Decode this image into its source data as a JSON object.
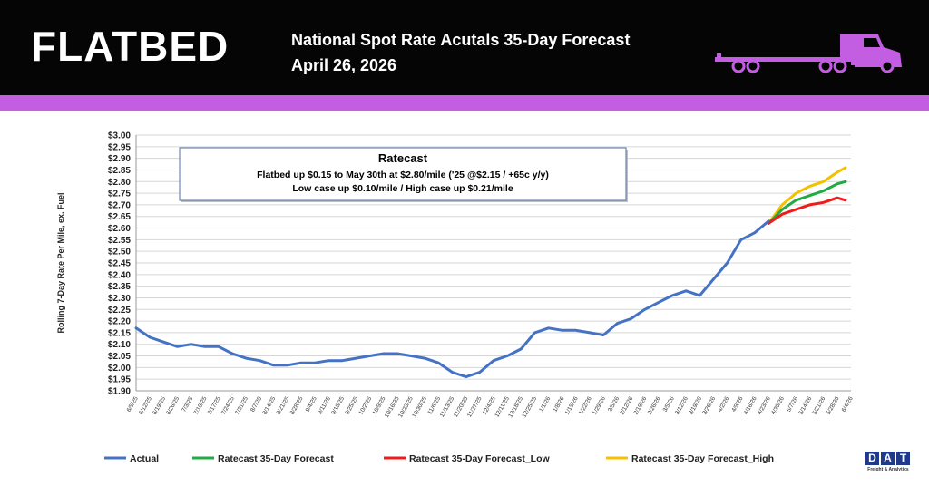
{
  "header": {
    "brand": "FLATBED",
    "title": "National Spot Rate Acutals 35-Day Forecast",
    "subtitle": "April 26, 2026",
    "truck_icon": "semi-truck-icon"
  },
  "colors": {
    "header_bg": "#050505",
    "band": "#c35de2",
    "actual": "#4472c4",
    "forecast": "#22aa44",
    "low": "#ee1c1c",
    "high": "#f5c000"
  },
  "logo": {
    "letters": [
      "D",
      "A",
      "T"
    ],
    "tagline": "Freight & Analytics"
  },
  "chart_data": {
    "type": "line",
    "ylabel": "Rolling 7-Day Rate Per Mile, ex. Fuel",
    "y_ticks": [
      "$1.90",
      "$1.95",
      "$2.00",
      "$2.05",
      "$2.10",
      "$2.15",
      "$2.20",
      "$2.25",
      "$2.30",
      "$2.35",
      "$2.40",
      "$2.45",
      "$2.50",
      "$2.55",
      "$2.60",
      "$2.65",
      "$2.70",
      "$2.75",
      "$2.80",
      "$2.85",
      "$2.90",
      "$2.95",
      "$3.00"
    ],
    "ylim": [
      1.9,
      3.0
    ],
    "x_ticks": [
      "6/5/25",
      "6/12/25",
      "6/19/25",
      "6/26/25",
      "7/3/25",
      "7/10/25",
      "7/17/25",
      "7/24/25",
      "7/31/25",
      "8/7/25",
      "8/14/25",
      "8/21/25",
      "8/28/25",
      "9/4/25",
      "9/11/25",
      "9/18/25",
      "9/25/25",
      "10/2/25",
      "10/9/25",
      "10/16/25",
      "10/23/25",
      "10/30/25",
      "11/6/25",
      "11/13/25",
      "11/20/25",
      "11/27/25",
      "12/4/25",
      "12/11/25",
      "12/18/25",
      "12/25/25",
      "1/1/26",
      "1/8/26",
      "1/15/26",
      "1/22/26",
      "1/29/26",
      "2/5/26",
      "2/12/26",
      "2/19/26",
      "2/26/26",
      "3/5/26",
      "3/12/26",
      "3/19/26",
      "3/26/26",
      "4/2/26",
      "4/9/26",
      "4/16/26",
      "4/23/26",
      "4/30/26",
      "5/7/26",
      "5/14/26",
      "5/21/26",
      "5/28/26",
      "6/4/26"
    ],
    "grid": true,
    "legend_position": "bottom",
    "annotation": {
      "title": "Ratecast",
      "line1": "Flatbed up $0.15 to May 30th at $2.80/mile ('25 @$2.15 / +65c y/y)",
      "line2": "Low case up $0.10/mile / High case up $0.21/mile"
    },
    "series": [
      {
        "name": "Actual",
        "color": "#4472c4",
        "points": [
          [
            0,
            2.17
          ],
          [
            1,
            2.13
          ],
          [
            2,
            2.11
          ],
          [
            3,
            2.09
          ],
          [
            4,
            2.1
          ],
          [
            5,
            2.09
          ],
          [
            6,
            2.09
          ],
          [
            7,
            2.06
          ],
          [
            8,
            2.04
          ],
          [
            9,
            2.03
          ],
          [
            10,
            2.01
          ],
          [
            11,
            2.01
          ],
          [
            12,
            2.02
          ],
          [
            13,
            2.02
          ],
          [
            14,
            2.03
          ],
          [
            15,
            2.03
          ],
          [
            16,
            2.04
          ],
          [
            17,
            2.05
          ],
          [
            18,
            2.06
          ],
          [
            19,
            2.06
          ],
          [
            20,
            2.05
          ],
          [
            21,
            2.04
          ],
          [
            22,
            2.02
          ],
          [
            23,
            1.98
          ],
          [
            24,
            1.96
          ],
          [
            25,
            1.98
          ],
          [
            26,
            2.03
          ],
          [
            27,
            2.05
          ],
          [
            28,
            2.08
          ],
          [
            29,
            2.15
          ],
          [
            30,
            2.17
          ],
          [
            31,
            2.16
          ],
          [
            32,
            2.16
          ],
          [
            33,
            2.15
          ],
          [
            34,
            2.14
          ],
          [
            35,
            2.19
          ],
          [
            36,
            2.21
          ],
          [
            37,
            2.25
          ],
          [
            38,
            2.28
          ],
          [
            39,
            2.31
          ],
          [
            40,
            2.33
          ],
          [
            41,
            2.31
          ],
          [
            42,
            2.38
          ],
          [
            43,
            2.45
          ],
          [
            44,
            2.55
          ],
          [
            45,
            2.58
          ],
          [
            46,
            2.63
          ]
        ]
      },
      {
        "name": "Ratecast 35-Day Forecast",
        "color": "#22aa44",
        "points": [
          [
            46,
            2.62
          ],
          [
            47,
            2.68
          ],
          [
            48,
            2.72
          ],
          [
            49,
            2.74
          ],
          [
            50,
            2.76
          ],
          [
            51,
            2.79
          ],
          [
            51.6,
            2.8
          ]
        ]
      },
      {
        "name": "Ratecast 35-Day Forecast_Low",
        "color": "#ee1c1c",
        "points": [
          [
            46,
            2.62
          ],
          [
            47,
            2.66
          ],
          [
            48,
            2.68
          ],
          [
            49,
            2.7
          ],
          [
            50,
            2.71
          ],
          [
            51,
            2.73
          ],
          [
            51.6,
            2.72
          ]
        ]
      },
      {
        "name": "Ratecast 35-Day Forecast_High",
        "color": "#f5c000",
        "points": [
          [
            46,
            2.62
          ],
          [
            47,
            2.7
          ],
          [
            48,
            2.75
          ],
          [
            49,
            2.78
          ],
          [
            50,
            2.8
          ],
          [
            51,
            2.84
          ],
          [
            51.6,
            2.86
          ]
        ]
      }
    ]
  }
}
